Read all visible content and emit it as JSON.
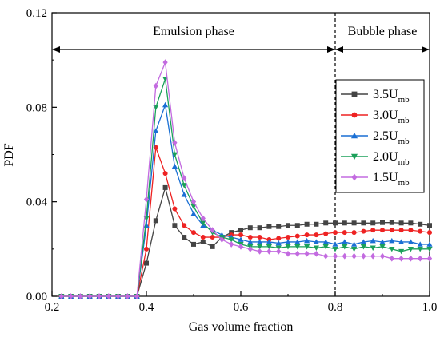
{
  "chart_data": {
    "type": "line",
    "xlabel": "Gas volume fraction",
    "ylabel": "PDF",
    "xlim": [
      0.2,
      1.0
    ],
    "ylim": [
      0.0,
      0.12
    ],
    "x_ticks": [
      "0.2",
      "0.4",
      "0.6",
      "0.8",
      "1.0"
    ],
    "y_ticks": [
      "0.00",
      "0.04",
      "0.08",
      "0.12"
    ],
    "grid": false,
    "legend_position": "right",
    "region_boundary": 0.8,
    "regions": [
      {
        "label": "Emulsion phase",
        "x_range": [
          0.2,
          0.8
        ]
      },
      {
        "label": "Bubble phase",
        "x_range": [
          0.8,
          1.0
        ]
      }
    ],
    "x": [
      0.22,
      0.24,
      0.26,
      0.28,
      0.3,
      0.32,
      0.34,
      0.36,
      0.38,
      0.4,
      0.42,
      0.44,
      0.46,
      0.48,
      0.5,
      0.52,
      0.54,
      0.56,
      0.58,
      0.6,
      0.62,
      0.64,
      0.66,
      0.68,
      0.7,
      0.72,
      0.74,
      0.76,
      0.78,
      0.8,
      0.82,
      0.84,
      0.86,
      0.88,
      0.9,
      0.92,
      0.94,
      0.96,
      0.98,
      1.0
    ],
    "series": [
      {
        "name_main": "3.5U",
        "name_sub": "mb",
        "color": "#444444",
        "marker": "square",
        "values": [
          0,
          0,
          0,
          0,
          0,
          0,
          0,
          0,
          0,
          0.014,
          0.032,
          0.046,
          0.03,
          0.025,
          0.022,
          0.023,
          0.021,
          0.025,
          0.027,
          0.028,
          0.029,
          0.029,
          0.0295,
          0.0295,
          0.03,
          0.03,
          0.0305,
          0.0305,
          0.031,
          0.031,
          0.031,
          0.031,
          0.031,
          0.031,
          0.0312,
          0.0312,
          0.031,
          0.031,
          0.0305,
          0.03
        ]
      },
      {
        "name_main": "3.0U",
        "name_sub": "mb",
        "color": "#ee2222",
        "marker": "circle",
        "values": [
          0,
          0,
          0,
          0,
          0,
          0,
          0,
          0,
          0,
          0.02,
          0.063,
          0.052,
          0.037,
          0.03,
          0.027,
          0.025,
          0.025,
          0.025,
          0.026,
          0.026,
          0.025,
          0.025,
          0.024,
          0.0245,
          0.025,
          0.0255,
          0.026,
          0.026,
          0.0265,
          0.027,
          0.027,
          0.027,
          0.0275,
          0.028,
          0.028,
          0.028,
          0.028,
          0.028,
          0.0275,
          0.027
        ]
      },
      {
        "name_main": "2.5U",
        "name_sub": "mb",
        "color": "#1a6fd4",
        "marker": "triangle-up",
        "values": [
          0,
          0,
          0,
          0,
          0,
          0,
          0,
          0,
          0,
          0.03,
          0.07,
          0.081,
          0.055,
          0.043,
          0.035,
          0.03,
          0.028,
          0.026,
          0.025,
          0.024,
          0.023,
          0.023,
          0.023,
          0.0225,
          0.023,
          0.023,
          0.0235,
          0.023,
          0.023,
          0.022,
          0.023,
          0.022,
          0.023,
          0.0235,
          0.023,
          0.0235,
          0.023,
          0.023,
          0.022,
          0.022
        ]
      },
      {
        "name_main": "2.0U",
        "name_sub": "mb",
        "color": "#1ba05a",
        "marker": "triangle-down",
        "values": [
          0,
          0,
          0,
          0,
          0,
          0,
          0,
          0,
          0,
          0.033,
          0.08,
          0.092,
          0.06,
          0.047,
          0.038,
          0.031,
          0.027,
          0.025,
          0.024,
          0.022,
          0.021,
          0.021,
          0.021,
          0.0205,
          0.021,
          0.021,
          0.021,
          0.0205,
          0.021,
          0.02,
          0.021,
          0.02,
          0.021,
          0.0205,
          0.021,
          0.02,
          0.019,
          0.02,
          0.02,
          0.02
        ]
      },
      {
        "name_main": "1.5U",
        "name_sub": "mb",
        "color": "#c36be0",
        "marker": "diamond",
        "values": [
          0,
          0,
          0,
          0,
          0,
          0,
          0,
          0,
          0,
          0.041,
          0.089,
          0.099,
          0.065,
          0.05,
          0.04,
          0.033,
          0.028,
          0.024,
          0.022,
          0.021,
          0.02,
          0.019,
          0.019,
          0.019,
          0.018,
          0.018,
          0.018,
          0.018,
          0.017,
          0.017,
          0.017,
          0.017,
          0.017,
          0.017,
          0.017,
          0.016,
          0.016,
          0.016,
          0.016,
          0.016
        ]
      }
    ]
  }
}
